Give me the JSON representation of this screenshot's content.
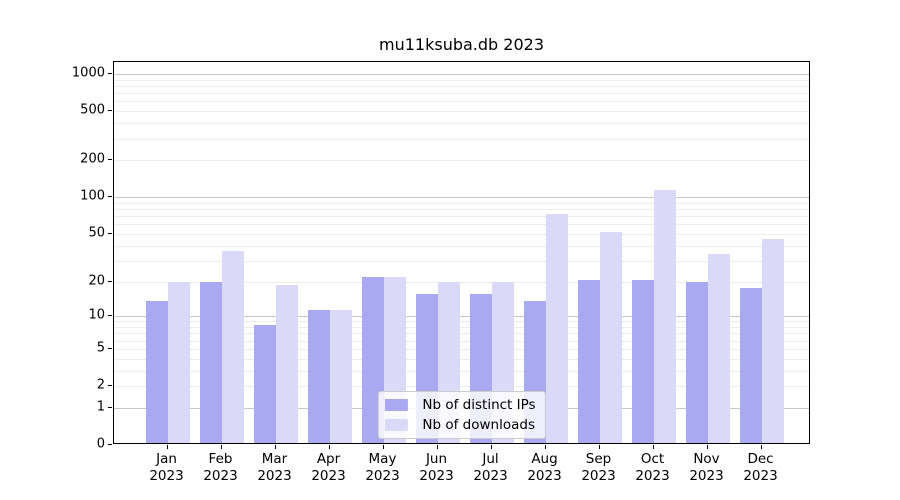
{
  "chart_data": {
    "type": "bar",
    "title": "mu11ksuba.db 2023",
    "categories": [
      "Jan",
      "Feb",
      "Mar",
      "Apr",
      "May",
      "Jun",
      "Jul",
      "Aug",
      "Sep",
      "Oct",
      "Nov",
      "Dec"
    ],
    "category_year": "2023",
    "series": [
      {
        "name": "Nb of distinct IPs",
        "color": "#a9a9f2",
        "values": [
          13,
          19,
          8,
          11,
          21,
          15,
          15,
          13,
          20,
          20,
          19,
          17
        ]
      },
      {
        "name": "Nb of downloads",
        "color": "#dadaf8",
        "values": [
          19,
          35,
          18,
          11,
          21,
          19,
          19,
          70,
          50,
          110,
          33,
          44
        ]
      }
    ],
    "yscale": "log1p",
    "ylim": [
      0,
      1250
    ],
    "y_ticks": [
      {
        "label": "0",
        "value": 0
      },
      {
        "label": "1",
        "value": 1
      },
      {
        "label": "2",
        "value": 2
      },
      {
        "label": "5",
        "value": 5
      },
      {
        "label": "10",
        "value": 10
      },
      {
        "label": "20",
        "value": 20
      },
      {
        "label": "50",
        "value": 50
      },
      {
        "label": "100",
        "value": 100
      },
      {
        "label": "200",
        "value": 200
      },
      {
        "label": "500",
        "value": 500
      },
      {
        "label": "1000",
        "value": 1000
      }
    ],
    "major_grid_values": [
      1,
      10,
      100,
      1000
    ],
    "minor_grid_values": [
      2,
      3,
      4,
      5,
      6,
      7,
      8,
      9,
      20,
      30,
      40,
      50,
      60,
      70,
      80,
      90,
      200,
      300,
      400,
      500,
      600,
      700,
      800,
      900
    ],
    "grid": true,
    "legend_position": "lower center",
    "colors": {
      "major_grid": "#c8c8c8",
      "minor_grid": "#ededed",
      "spine": "#000000",
      "background": "#ffffff"
    }
  }
}
